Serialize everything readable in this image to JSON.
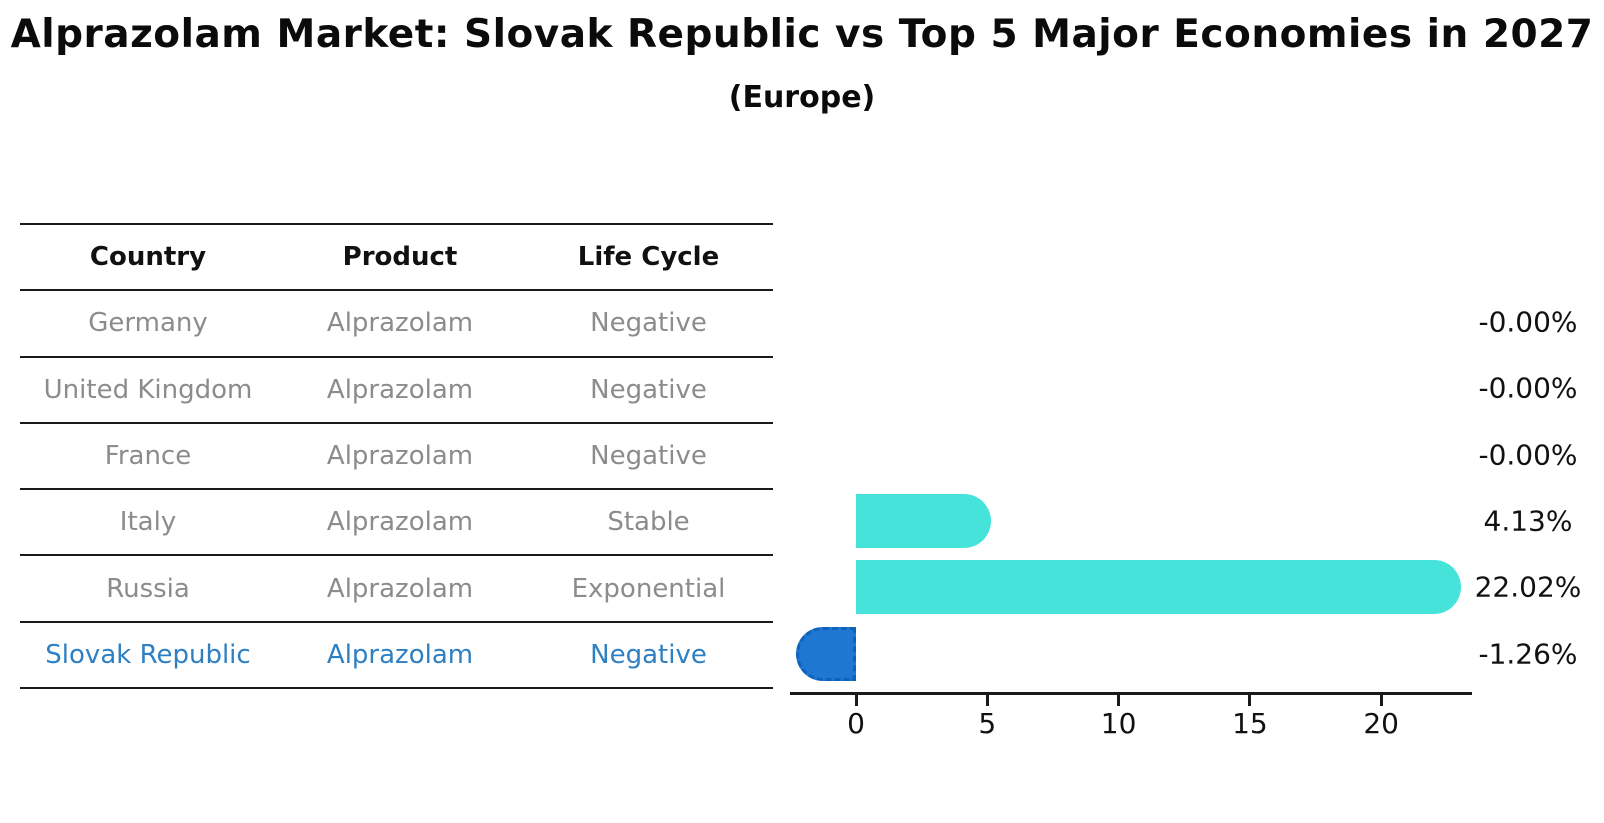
{
  "header": {
    "title": "Alprazolam Market: Slovak Republic vs Top 5 Major Economies in 2027",
    "subtitle": "(Europe)"
  },
  "table": {
    "columns": [
      "Country",
      "Product",
      "Life Cycle"
    ],
    "rows": [
      {
        "country": "Germany",
        "product": "Alprazolam",
        "life_cycle": "Negative",
        "highlighted": false
      },
      {
        "country": "United Kingdom",
        "product": "Alprazolam",
        "life_cycle": "Negative",
        "highlighted": false
      },
      {
        "country": "France",
        "product": "Alprazolam",
        "life_cycle": "Negative",
        "highlighted": false
      },
      {
        "country": "Italy",
        "product": "Alprazolam",
        "life_cycle": "Stable",
        "highlighted": false
      },
      {
        "country": "Russia",
        "product": "Alprazolam",
        "life_cycle": "Exponential",
        "highlighted": false
      },
      {
        "country": "Slovak Republic",
        "product": "Alprazolam",
        "life_cycle": "Negative",
        "highlighted": true
      }
    ]
  },
  "chart_data": {
    "type": "bar",
    "orientation": "horizontal",
    "title": "Alprazolam Market: Slovak Republic vs Top 5 Major Economies in 2027 (Europe)",
    "categories": [
      "Germany",
      "United Kingdom",
      "France",
      "Italy",
      "Russia",
      "Slovak Republic"
    ],
    "values": [
      -0.0,
      -0.0,
      -0.0,
      4.13,
      22.02,
      -1.26
    ],
    "value_labels": [
      "-0.00%",
      "-0.00%",
      "-0.00%",
      "4.13%",
      "22.02%",
      "-1.26%"
    ],
    "xticks": [
      0,
      5,
      10,
      15,
      20
    ],
    "xlim": [
      -2.5,
      23.4
    ],
    "grid": false,
    "legend": false,
    "highlight_index": 5,
    "colors": {
      "default_bar": "#46e3db",
      "highlight_bar": "#1e78d2",
      "highlight_text": "#2e80c3",
      "table_text": "#8c8c8c",
      "axis": "#1a1a1a"
    }
  }
}
